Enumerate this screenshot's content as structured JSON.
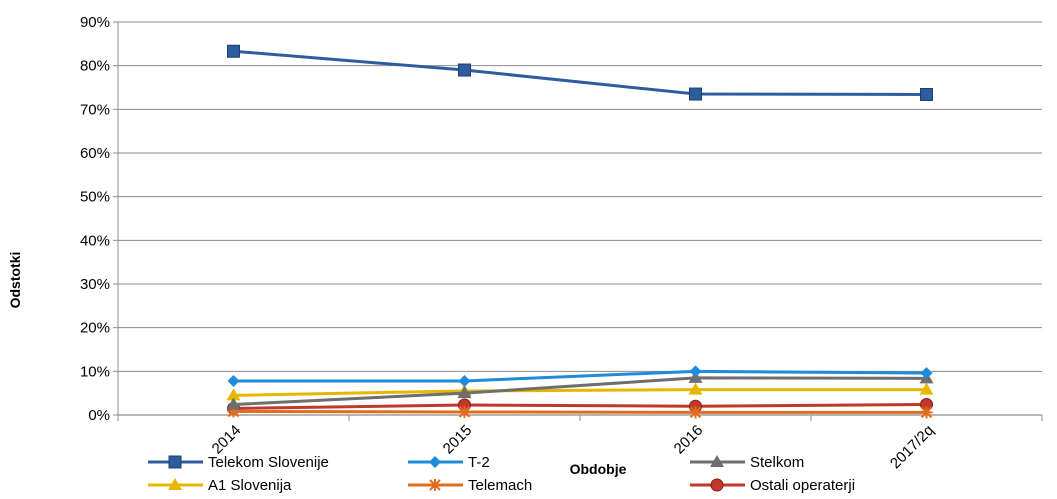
{
  "chart_data": {
    "type": "line",
    "xlabel": "Obdobje",
    "ylabel": "Odstotki",
    "ylim": [
      0,
      90
    ],
    "yticks": [
      "0%",
      "10%",
      "20%",
      "30%",
      "40%",
      "50%",
      "60%",
      "70%",
      "80%",
      "90%"
    ],
    "categories": [
      "2014",
      "2015",
      "2016",
      "2017/2q"
    ],
    "grid": true,
    "legend_position": "bottom",
    "series": [
      {
        "name": "Telekom Slovenije",
        "values": [
          83.3,
          79.0,
          73.5,
          73.4
        ],
        "color": "#2E5D9E",
        "marker": "square"
      },
      {
        "name": "T-2",
        "values": [
          7.8,
          7.8,
          10.0,
          9.6
        ],
        "color": "#1F8BDB",
        "marker": "diamond"
      },
      {
        "name": "Stelkom",
        "values": [
          2.4,
          5.0,
          8.5,
          8.4
        ],
        "color": "#6E6E6E",
        "marker": "triangle"
      },
      {
        "name": "A1 Slovenija",
        "values": [
          4.5,
          5.5,
          5.8,
          5.8
        ],
        "color": "#E7B700",
        "marker": "triangle"
      },
      {
        "name": "Telemach",
        "values": [
          0.8,
          0.7,
          0.6,
          0.6
        ],
        "color": "#E36C1D",
        "marker": "asterisk"
      },
      {
        "name": "Ostali operaterji",
        "values": [
          1.5,
          2.3,
          2.0,
          2.4
        ],
        "color": "#C0392B",
        "marker": "circle"
      }
    ]
  }
}
